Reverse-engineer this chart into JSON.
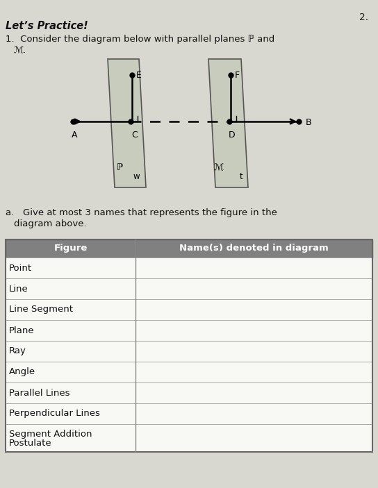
{
  "background_color": "#d8d8d0",
  "page_number": "2.",
  "title": "Let’s Practice!",
  "table_header": [
    "Figure",
    "Name(s) denoted in diagram"
  ],
  "table_rows": [
    "Point",
    "Line",
    "Line Segment",
    "Plane",
    "Ray",
    "Angle",
    "Parallel Lines",
    "Perpendicular Lines",
    "Segment Addition\nPostulate"
  ],
  "header_bg": "#808080",
  "header_fg": "#ffffff",
  "row_bg_white": "#f5f5f0",
  "row_bg_gray": "#f5f5f0",
  "table_border": "#999999",
  "plane_color": "#c8ccbc",
  "plane_edge": "#555555"
}
